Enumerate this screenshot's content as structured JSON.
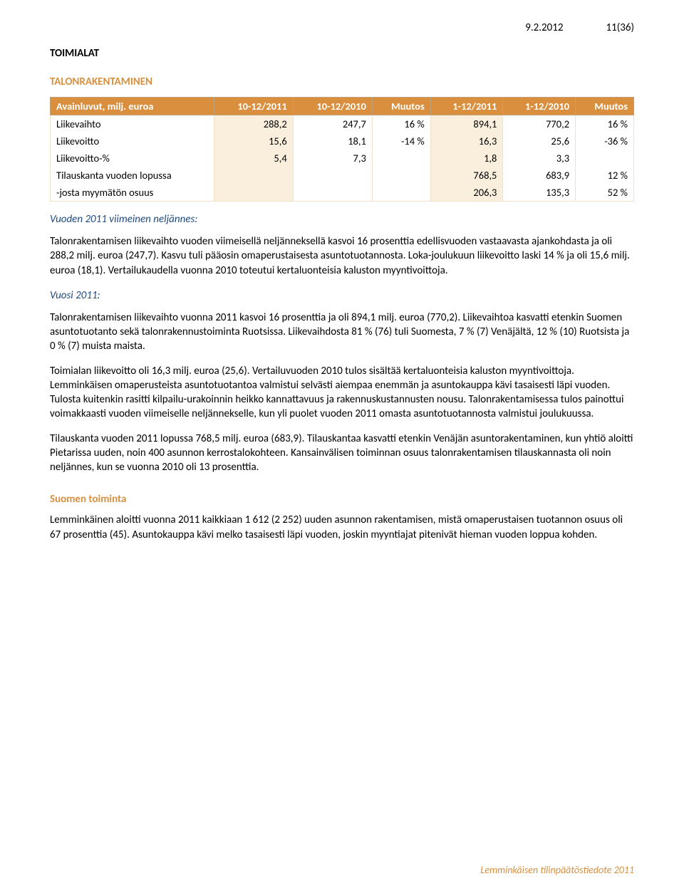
{
  "header": {
    "date": "9.2.2012",
    "page": "11(36)"
  },
  "titles": {
    "toimialat": "TOIMIALAT",
    "talonrakentaminen": "TALONRAKENTAMINEN",
    "suomen_toiminta": "Suomen toiminta",
    "q4_heading": "Vuoden 2011 viimeinen neljännes:",
    "year_heading": "Vuosi 2011:"
  },
  "table": {
    "columns": [
      "Avainluvut, milj. euroa",
      "10-12/2011",
      "10-12/2010",
      "Muutos",
      "1-12/2011",
      "1-12/2010",
      "Muutos"
    ],
    "rows": [
      {
        "label": "Liikevaihto",
        "c1": "288,2",
        "c2": "247,7",
        "c3": "16 %",
        "c4": "894,1",
        "c5": "770,2",
        "c6": "16 %"
      },
      {
        "label": "Liikevoitto",
        "c1": "15,6",
        "c2": "18,1",
        "c3": "-14 %",
        "c4": "16,3",
        "c5": "25,6",
        "c6": "-36 %"
      },
      {
        "label": "Liikevoitto-%",
        "c1": "5,4",
        "c2": "7,3",
        "c3": "",
        "c4": "1,8",
        "c5": "3,3",
        "c6": ""
      },
      {
        "label": "Tilauskanta vuoden lopussa",
        "c1": "",
        "c2": "",
        "c3": "",
        "c4": "768,5",
        "c5": "683,9",
        "c6": "12 %"
      },
      {
        "label": "-josta myymätön osuus",
        "c1": "",
        "c2": "",
        "c3": "",
        "c4": "206,3",
        "c5": "135,3",
        "c6": "52 %"
      }
    ],
    "header_bg": "#d98f3e",
    "header_text_color": "#ffffff",
    "shade_bg": "#faeedd",
    "border_color": "#f3e0c8",
    "font_size": 14.5
  },
  "paragraphs": {
    "q4": "Talonrakentamisen liikevaihto vuoden viimeisellä neljänneksellä kasvoi 16 prosenttia edellisvuoden vastaavasta ajankohdasta ja oli 288,2 milj. euroa (247,7). Kasvu tuli pääosin omaperustaisesta asuntotuotannosta. Loka-joulukuun liikevoitto laski 14 % ja oli 15,6 milj. euroa (18,1). Vertailukaudella vuonna 2010 toteutui kertaluonteisia kaluston myyntivoittoja.",
    "y1": "Talonrakentamisen liikevaihto vuonna 2011 kasvoi 16 prosenttia ja oli 894,1 milj. euroa (770,2). Liikevaihtoa kasvatti etenkin Suomen asuntotuotanto sekä talonrakennustoiminta Ruotsissa. Liikevaihdosta 81 % (76) tuli Suomesta, 7 % (7) Venäjältä, 12 % (10) Ruotsista ja 0 % (7) muista maista.",
    "y2": "Toimialan liikevoitto oli 16,3 milj. euroa (25,6). Vertailuvuoden 2010 tulos sisältää kertaluonteisia kaluston myyntivoittoja. Lemminkäisen omaperusteista asuntotuotantoa valmistui selvästi aiempaa enemmän ja asuntokauppa kävi tasaisesti läpi vuoden. Tulosta kuitenkin rasitti kilpailu-urakoinnin heikko kannattavuus ja rakennuskustannusten nousu. Talonrakentamisessa tulos painottui voimakkaasti vuoden viimeiselle neljännekselle, kun yli puolet vuoden 2011 omasta asuntotuotannosta valmistui joulukuussa.",
    "y3": "Tilauskanta vuoden 2011 lopussa 768,5 milj. euroa (683,9). Tilauskantaa kasvatti etenkin Venäjän asuntorakentaminen, kun yhtiö aloitti Pietarissa uuden, noin 400 asunnon kerrostalokohteen. Kansainvälisen toiminnan osuus talonrakentamisen tilauskannasta oli noin neljännes, kun se vuonna 2010 oli 13 prosenttia.",
    "suomi": "Lemminkäinen aloitti vuonna 2011 kaikkiaan 1 612 (2 252) uuden asunnon rakentamisen, mistä omaperustaisen tuotannon osuus oli 67 prosenttia (45). Asuntokauppa kävi melko tasaisesti läpi vuoden, joskin myyntiajat pitenivät hieman vuoden loppua kohden."
  },
  "footer": "Lemminkäisen tilinpäätöstiedote 2011",
  "colors": {
    "orange": "#d98f3e",
    "blue": "#1f497d",
    "text": "#000000",
    "background": "#ffffff"
  }
}
